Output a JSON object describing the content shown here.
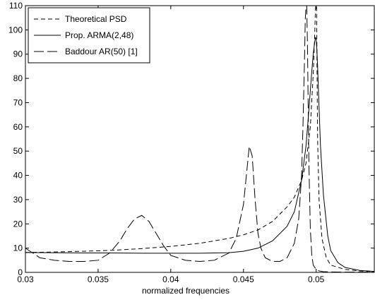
{
  "chart_data": {
    "type": "line",
    "xlabel": "normalized frequencies",
    "ylabel": "",
    "title": "",
    "xlim": [
      0.03,
      0.054
    ],
    "ylim": [
      0,
      110
    ],
    "xticks": [
      0.03,
      0.035,
      0.04,
      0.045,
      0.05
    ],
    "xtick_labels": [
      "0.03",
      "0.035",
      "0.04",
      "0.045",
      "0.05"
    ],
    "yticks": [
      0,
      10,
      20,
      30,
      40,
      50,
      60,
      70,
      80,
      90,
      100,
      110
    ],
    "ytick_labels": [
      "0",
      "10",
      "20",
      "30",
      "40",
      "50",
      "60",
      "70",
      "80",
      "90",
      "100",
      "110"
    ],
    "grid": false,
    "legend_position": "top-left",
    "series": [
      {
        "name": "Theoretical PSD",
        "style": "dashed",
        "color": "#000000",
        "x": [
          0.03,
          0.032,
          0.034,
          0.036,
          0.038,
          0.04,
          0.042,
          0.044,
          0.045,
          0.046,
          0.047,
          0.048,
          0.0485,
          0.049,
          0.0493,
          0.0496,
          0.0498,
          0.0499,
          0.04995,
          0.04997,
          0.04998,
          0.05,
          0.05002,
          0.05003,
          0.05005,
          0.0501,
          0.0502,
          0.0504,
          0.0507,
          0.051,
          0.052,
          0.053,
          0.054
        ],
        "y": [
          8.2,
          8.4,
          8.7,
          9.1,
          9.8,
          10.7,
          12.0,
          14.0,
          15.5,
          17.5,
          21,
          27,
          31,
          38,
          45,
          60,
          82,
          98,
          108,
          110,
          110,
          110,
          110,
          110,
          92,
          55,
          30,
          14,
          6,
          3,
          1.2,
          0.6,
          0.3
        ]
      },
      {
        "name": "Prop. ARMA(2,48)",
        "style": "solid",
        "color": "#000000",
        "x": [
          0.03,
          0.032,
          0.034,
          0.036,
          0.038,
          0.04,
          0.042,
          0.044,
          0.045,
          0.046,
          0.047,
          0.048,
          0.0485,
          0.049,
          0.0493,
          0.0495,
          0.0497,
          0.0498,
          0.0499,
          0.04995,
          0.05,
          0.05005,
          0.0501,
          0.0502,
          0.0503,
          0.0505,
          0.0508,
          0.051,
          0.0515,
          0.052,
          0.053,
          0.054
        ],
        "y": [
          8.2,
          8.1,
          8.0,
          8.0,
          7.9,
          7.9,
          7.9,
          8.1,
          8.7,
          10,
          13,
          19,
          25,
          38,
          52,
          67,
          83,
          90,
          95,
          97,
          96,
          92,
          85,
          68,
          52,
          32,
          15,
          9,
          4,
          2,
          0.8,
          0.4
        ]
      },
      {
        "name": "Baddour AR(50) [1]",
        "style": "dashdot",
        "color": "#000000",
        "x": [
          0.03,
          0.0305,
          0.031,
          0.032,
          0.033,
          0.034,
          0.035,
          0.0358,
          0.0365,
          0.037,
          0.0375,
          0.038,
          0.0385,
          0.039,
          0.0395,
          0.04,
          0.041,
          0.042,
          0.043,
          0.044,
          0.0445,
          0.045,
          0.0452,
          0.0454,
          0.0456,
          0.0458,
          0.046,
          0.0462,
          0.0465,
          0.047,
          0.0475,
          0.048,
          0.0485,
          0.0488,
          0.049,
          0.0491,
          0.0492,
          0.04925,
          0.0493,
          0.04935,
          0.0494,
          0.04945,
          0.0495,
          0.0496,
          0.0497,
          0.0498,
          0.05,
          0.0502,
          0.0505,
          0.051,
          0.052,
          0.053,
          0.054
        ],
        "y": [
          10,
          8,
          6,
          5,
          4.5,
          4.5,
          5,
          8,
          13,
          18,
          22,
          23.5,
          21,
          16,
          11,
          7,
          5,
          4.5,
          5,
          8,
          14,
          28,
          40,
          52,
          48,
          30,
          16,
          10,
          6,
          4.5,
          4.5,
          6,
          12,
          22,
          40,
          62,
          88,
          104,
          110,
          110,
          95,
          70,
          45,
          18,
          7,
          3,
          1.2,
          0.6,
          0.3,
          0.2,
          0.1,
          0.1,
          0.1
        ]
      }
    ]
  },
  "icons": [
    "theoretical-psd-legend-swatch",
    "arma-legend-swatch",
    "baddour-legend-swatch"
  ]
}
